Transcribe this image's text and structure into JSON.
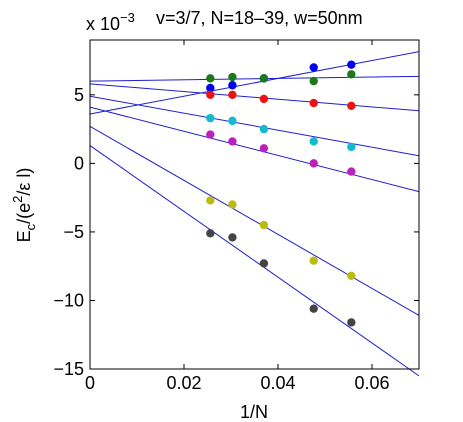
{
  "chart_data": {
    "type": "scatter",
    "title": "v=3/7, N=18–39, w=50nm",
    "xlabel": "1/N",
    "ylabel_main": "E",
    "ylabel_sub": "c",
    "ylabel_rest": "/(e",
    "ylabel_sup": "2",
    "ylabel_end": "/ε l)",
    "y_multiplier_base": "x 10",
    "y_multiplier_exp": "−3",
    "xlim": [
      0,
      0.07
    ],
    "ylim": [
      -15,
      9
    ],
    "xticks": [
      {
        "value": 0,
        "label": "0"
      },
      {
        "value": 0.02,
        "label": "0.02"
      },
      {
        "value": 0.04,
        "label": "0.04"
      },
      {
        "value": 0.06,
        "label": "0.06"
      }
    ],
    "yticks": [
      {
        "value": -15,
        "label": "−15"
      },
      {
        "value": -10,
        "label": "−10"
      },
      {
        "value": -5,
        "label": "−5"
      },
      {
        "value": 0,
        "label": "0"
      },
      {
        "value": 5,
        "label": "5"
      }
    ],
    "fit_color": "#1f1fd0",
    "x": [
      0.0256,
      0.0303,
      0.037,
      0.0476,
      0.0556
    ],
    "series": [
      {
        "color": "#0000ee",
        "values": [
          5.5,
          5.7,
          6.2,
          7.0,
          7.2
        ],
        "fit": [
          3.6,
          65
        ]
      },
      {
        "color": "#1a7a1a",
        "values": [
          6.2,
          6.3,
          6.2,
          6.0,
          6.5
        ],
        "fit": [
          6.0,
          5
        ]
      },
      {
        "color": "#ee1111",
        "values": [
          5.0,
          5.0,
          4.7,
          4.4,
          4.2
        ],
        "fit": [
          5.8,
          -28
        ]
      },
      {
        "color": "#11bbcc",
        "values": [
          3.3,
          3.1,
          2.5,
          1.6,
          1.2
        ],
        "fit": [
          4.9,
          -62
        ]
      },
      {
        "color": "#bb22bb",
        "values": [
          2.1,
          1.6,
          1.1,
          0.0,
          -0.6
        ],
        "fit": [
          4.1,
          -88
        ]
      },
      {
        "color": "#bbbb11",
        "values": [
          -2.7,
          -3.0,
          -4.5,
          -7.1,
          -8.2
        ],
        "fit": [
          2.7,
          -197
        ]
      },
      {
        "color": "#444444",
        "values": [
          -5.1,
          -5.4,
          -7.3,
          -10.6,
          -11.6
        ],
        "fit": [
          1.3,
          -240
        ]
      }
    ]
  }
}
